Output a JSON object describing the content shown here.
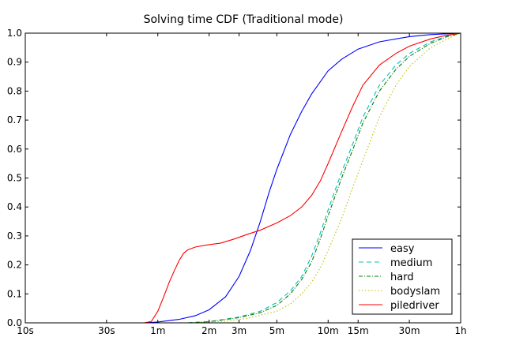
{
  "chart_data": {
    "type": "line",
    "title": "Solving time CDF (Traditional mode)",
    "xlabel": "",
    "ylabel": "",
    "x_scale": "log",
    "x_unit": "seconds",
    "xlim": [
      10,
      3600
    ],
    "ylim": [
      0,
      1.0
    ],
    "grid": false,
    "legend_position": "lower right",
    "x_ticks": [
      {
        "value": 10,
        "label": "10s"
      },
      {
        "value": 30,
        "label": "30s"
      },
      {
        "value": 60,
        "label": "1m"
      },
      {
        "value": 120,
        "label": "2m"
      },
      {
        "value": 180,
        "label": "3m"
      },
      {
        "value": 300,
        "label": "5m"
      },
      {
        "value": 600,
        "label": "10m"
      },
      {
        "value": 900,
        "label": "15m"
      },
      {
        "value": 1800,
        "label": "30m"
      },
      {
        "value": 3600,
        "label": "1h"
      }
    ],
    "y_ticks": [
      {
        "value": 0.0,
        "label": "0.0"
      },
      {
        "value": 0.1,
        "label": "0.1"
      },
      {
        "value": 0.2,
        "label": "0.2"
      },
      {
        "value": 0.3,
        "label": "0.3"
      },
      {
        "value": 0.4,
        "label": "0.4"
      },
      {
        "value": 0.5,
        "label": "0.5"
      },
      {
        "value": 0.6,
        "label": "0.6"
      },
      {
        "value": 0.7,
        "label": "0.7"
      },
      {
        "value": 0.8,
        "label": "0.8"
      },
      {
        "value": 0.9,
        "label": "0.9"
      },
      {
        "value": 1.0,
        "label": "1.0"
      }
    ],
    "series": [
      {
        "name": "easy",
        "color": "#0000ff",
        "dash": "solid",
        "points": [
          [
            50,
            0.0
          ],
          [
            60,
            0.003
          ],
          [
            80,
            0.012
          ],
          [
            100,
            0.025
          ],
          [
            120,
            0.045
          ],
          [
            150,
            0.09
          ],
          [
            180,
            0.16
          ],
          [
            210,
            0.25
          ],
          [
            240,
            0.35
          ],
          [
            270,
            0.45
          ],
          [
            300,
            0.53
          ],
          [
            360,
            0.65
          ],
          [
            420,
            0.73
          ],
          [
            480,
            0.79
          ],
          [
            600,
            0.87
          ],
          [
            720,
            0.91
          ],
          [
            900,
            0.945
          ],
          [
            1200,
            0.97
          ],
          [
            1800,
            0.988
          ],
          [
            2400,
            0.995
          ],
          [
            3600,
            1.0
          ]
        ]
      },
      {
        "name": "medium",
        "color": "#00bfbf",
        "dash": "dashed",
        "points": [
          [
            90,
            0.0
          ],
          [
            120,
            0.004
          ],
          [
            180,
            0.02
          ],
          [
            240,
            0.04
          ],
          [
            300,
            0.07
          ],
          [
            360,
            0.11
          ],
          [
            420,
            0.16
          ],
          [
            480,
            0.23
          ],
          [
            540,
            0.31
          ],
          [
            600,
            0.39
          ],
          [
            720,
            0.52
          ],
          [
            840,
            0.62
          ],
          [
            960,
            0.71
          ],
          [
            1200,
            0.82
          ],
          [
            1500,
            0.89
          ],
          [
            1800,
            0.93
          ],
          [
            2400,
            0.97
          ],
          [
            3000,
            0.99
          ],
          [
            3600,
            1.0
          ]
        ]
      },
      {
        "name": "hard",
        "color": "#008000",
        "dash": "dashdot",
        "points": [
          [
            90,
            0.0
          ],
          [
            120,
            0.004
          ],
          [
            180,
            0.018
          ],
          [
            240,
            0.035
          ],
          [
            300,
            0.06
          ],
          [
            360,
            0.1
          ],
          [
            420,
            0.15
          ],
          [
            480,
            0.21
          ],
          [
            540,
            0.29
          ],
          [
            600,
            0.37
          ],
          [
            720,
            0.5
          ],
          [
            840,
            0.6
          ],
          [
            960,
            0.69
          ],
          [
            1200,
            0.8
          ],
          [
            1500,
            0.875
          ],
          [
            1800,
            0.92
          ],
          [
            2400,
            0.965
          ],
          [
            3000,
            0.988
          ],
          [
            3600,
            1.0
          ]
        ]
      },
      {
        "name": "bodyslam",
        "color": "#bfbf00",
        "dash": "dotted",
        "points": [
          [
            100,
            0.0
          ],
          [
            150,
            0.006
          ],
          [
            200,
            0.015
          ],
          [
            300,
            0.04
          ],
          [
            360,
            0.065
          ],
          [
            420,
            0.1
          ],
          [
            480,
            0.14
          ],
          [
            540,
            0.19
          ],
          [
            600,
            0.25
          ],
          [
            720,
            0.36
          ],
          [
            840,
            0.47
          ],
          [
            960,
            0.56
          ],
          [
            1080,
            0.64
          ],
          [
            1200,
            0.71
          ],
          [
            1500,
            0.82
          ],
          [
            1800,
            0.885
          ],
          [
            2400,
            0.95
          ],
          [
            3000,
            0.98
          ],
          [
            3600,
            1.0
          ]
        ]
      },
      {
        "name": "piledriver",
        "color": "#ff0000",
        "dash": "solid",
        "points": [
          [
            50,
            0.0
          ],
          [
            55,
            0.005
          ],
          [
            60,
            0.04
          ],
          [
            65,
            0.09
          ],
          [
            70,
            0.14
          ],
          [
            75,
            0.18
          ],
          [
            80,
            0.215
          ],
          [
            85,
            0.24
          ],
          [
            90,
            0.252
          ],
          [
            100,
            0.262
          ],
          [
            120,
            0.27
          ],
          [
            140,
            0.275
          ],
          [
            170,
            0.29
          ],
          [
            200,
            0.305
          ],
          [
            240,
            0.32
          ],
          [
            300,
            0.345
          ],
          [
            360,
            0.37
          ],
          [
            420,
            0.4
          ],
          [
            480,
            0.44
          ],
          [
            540,
            0.49
          ],
          [
            600,
            0.55
          ],
          [
            720,
            0.66
          ],
          [
            840,
            0.75
          ],
          [
            960,
            0.82
          ],
          [
            1200,
            0.89
          ],
          [
            1500,
            0.93
          ],
          [
            1800,
            0.955
          ],
          [
            2400,
            0.98
          ],
          [
            3000,
            0.993
          ],
          [
            3600,
            1.0
          ]
        ]
      }
    ]
  }
}
